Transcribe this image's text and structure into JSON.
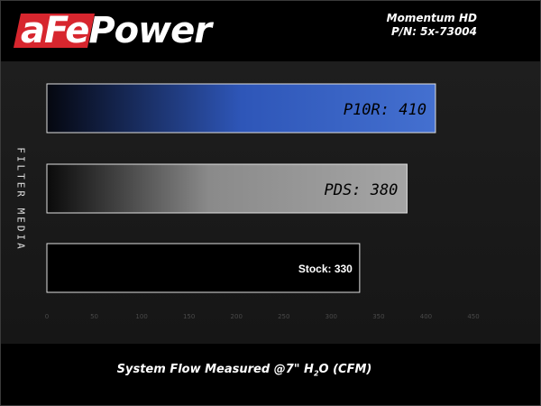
{
  "brand": {
    "logo_text": "aFePower"
  },
  "product": {
    "name": "Momentum HD",
    "part_number": "P/N: 5x-73004"
  },
  "chart_data": {
    "type": "bar",
    "orientation": "horizontal",
    "categories": [
      "P10R",
      "PDS",
      "Stock"
    ],
    "values": [
      410,
      380,
      330
    ],
    "data_labels": [
      "P10R: 410",
      "PDS: 380",
      "Stock: 330"
    ],
    "xlabel": "System Flow Measured @7\" H2O (CFM)",
    "ylabel": "FILTER MEDIA",
    "xlim": [
      0,
      450
    ],
    "xticks": [
      0,
      50,
      100,
      150,
      200,
      250,
      300,
      350,
      400,
      450
    ],
    "grid": false,
    "colors": [
      "#3b62c4",
      "#9a9a9a",
      "#000000"
    ]
  }
}
